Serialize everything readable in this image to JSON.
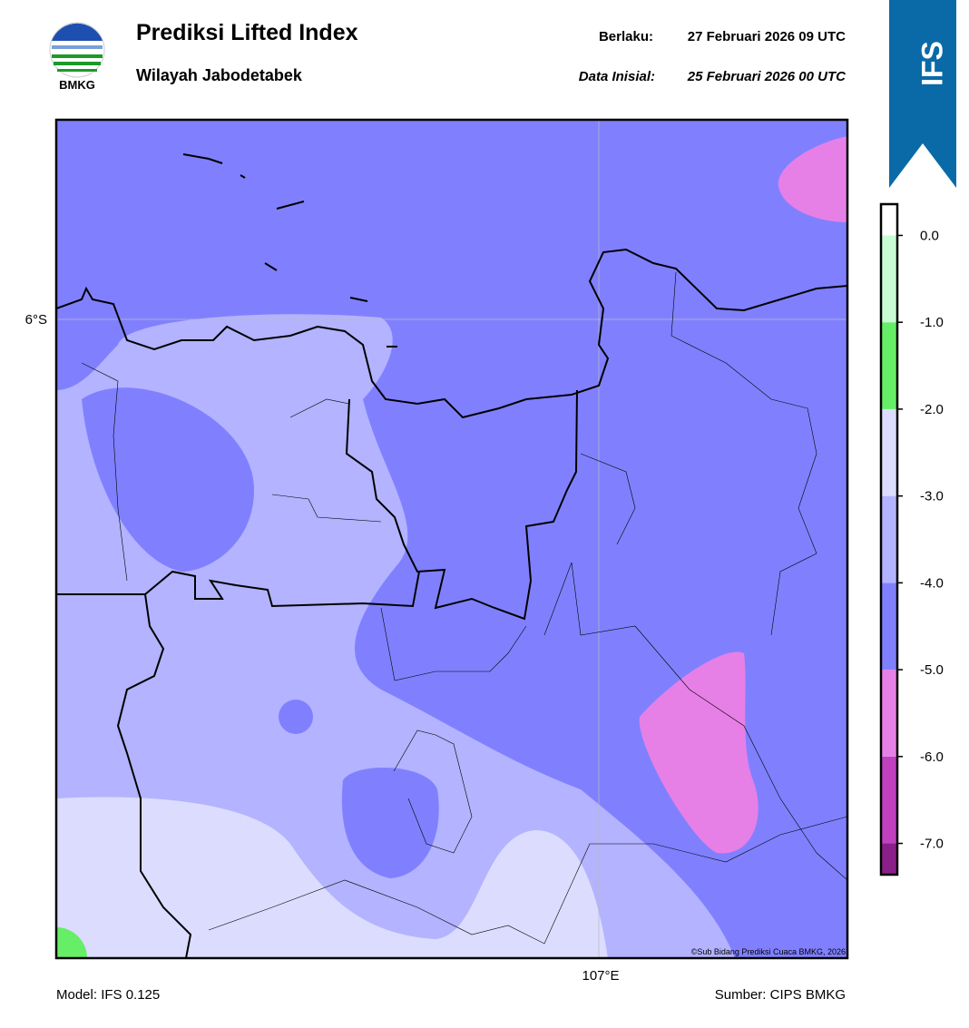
{
  "header": {
    "logo_text": "BMKG",
    "title": "Prediksi Lifted Index",
    "subtitle": "Wilayah Jabodetabek",
    "valid_label": "Berlaku:",
    "valid_time": "27 Februari 2026 09 UTC",
    "init_label": "Data Inisial:",
    "init_time": "25 Februari 2026 00 UTC",
    "badge": "IFS"
  },
  "map": {
    "lat_label": "6°S",
    "lon_label": "107°E",
    "copyright": "©Sub Bidang Prediksi Cuaca BMKG, 2026"
  },
  "colorbar": {
    "lim": [
      -7.36,
      0.36
    ],
    "ticks": [
      {
        "value": 0,
        "label": "0.0"
      },
      {
        "value": -1,
        "label": "-1.0"
      },
      {
        "value": -2,
        "label": "-2.0"
      },
      {
        "value": -3,
        "label": "-3.0"
      },
      {
        "value": -4,
        "label": "-4.0"
      },
      {
        "value": -5,
        "label": "-5.0"
      },
      {
        "value": -6,
        "label": "-6.0"
      },
      {
        "value": -7,
        "label": "-7.0"
      }
    ],
    "colors": [
      "#8a1f8a",
      "#c040c0",
      "#e680e6",
      "#8080ff",
      "#b3b3ff",
      "#dcdcff",
      "#66ee66",
      "#c8fcd4",
      "#ffffff"
    ]
  },
  "footer": {
    "model": "Model: IFS 0.125",
    "source": "Sumber: CIPS BMKG"
  }
}
